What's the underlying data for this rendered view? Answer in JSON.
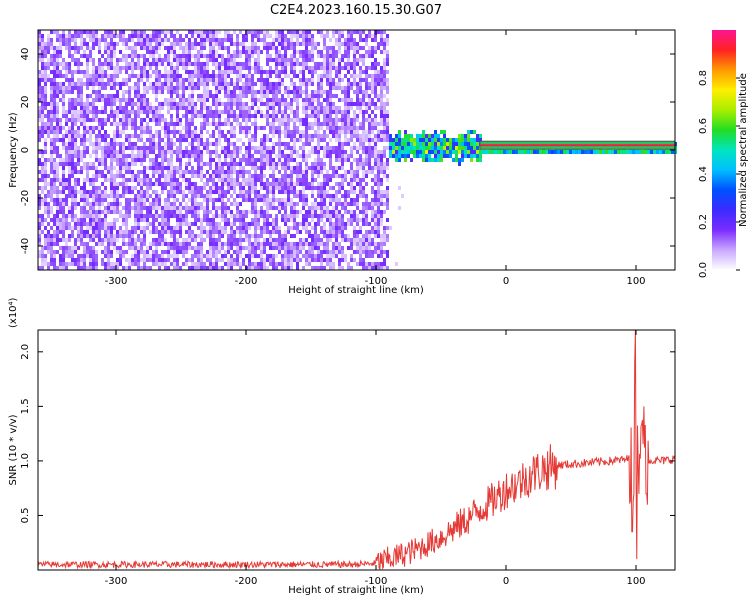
{
  "title": "C2E4.2023.160.15.30.G07",
  "colors": {
    "frame": "#000000",
    "snr_line": "#e53935",
    "trace_outer": "#555555",
    "trace_inner": "#ff1744",
    "band_core": "#22c55e"
  },
  "chart_data": [
    {
      "type": "heatmap",
      "title": "C2E4.2023.160.15.30.G07",
      "xlabel": "Height of straight line (km)",
      "ylabel": "Frequency (Hz)",
      "xlim": [
        -360,
        130
      ],
      "ylim": [
        -50,
        50
      ],
      "xticks": [
        -300,
        -200,
        -100,
        0,
        100
      ],
      "yticks": [
        -40,
        -20,
        0,
        20,
        40
      ],
      "colorbar": {
        "label": "Normalized spectral amplitude",
        "range": [
          0.0,
          1.0
        ],
        "ticks": [
          "0.0",
          "0.2",
          "0.4",
          "0.6",
          "0.8"
        ],
        "colormap": [
          "#ffffff",
          "#c9a8ff",
          "#7a2cff",
          "#3b2cff",
          "#0050ff",
          "#00bfff",
          "#00e5c0",
          "#22dd22",
          "#aaee00",
          "#ffee00",
          "#ff9900",
          "#ff2222",
          "#ff1493"
        ]
      },
      "features": {
        "noise_region_x": [
          -360,
          -90
        ],
        "noise_level": 0.1,
        "signal_frequency_hz": 2,
        "signal_start_x": -95,
        "saturated_band_x": [
          -20,
          130
        ]
      }
    },
    {
      "type": "line",
      "xlabel": "Height of straight line (km)",
      "ylabel": "SNR (10 * v/v)",
      "y_multiplier": "(x10⁴)",
      "xlim": [
        -360,
        130
      ],
      "ylim": [
        0,
        2.2
      ],
      "xticks": [
        -300,
        -200,
        -100,
        0,
        100
      ],
      "yticks": [
        0.5,
        1.0,
        1.5,
        2.0
      ],
      "series": [
        {
          "x": [
            -360,
            -320,
            -280,
            -240,
            -200,
            -160,
            -120,
            -100,
            -90,
            -80,
            -70,
            -60,
            -50,
            -40,
            -30,
            -20,
            -10,
            0,
            10,
            20,
            30,
            40,
            50,
            60,
            70,
            80,
            90,
            95,
            100,
            103,
            106,
            110,
            120,
            130
          ],
          "y": [
            0.05,
            0.05,
            0.05,
            0.05,
            0.05,
            0.05,
            0.05,
            0.06,
            0.1,
            0.14,
            0.18,
            0.24,
            0.3,
            0.38,
            0.46,
            0.56,
            0.64,
            0.74,
            0.8,
            0.88,
            0.93,
            0.96,
            0.97,
            0.98,
            0.99,
            1.0,
            1.01,
            1.02,
            1.03,
            1.1,
            1.02,
            1.01,
            1.0,
            1.02
          ]
        }
      ],
      "spikes": [
        {
          "x": 97,
          "y": 0.35
        },
        {
          "x": 99,
          "y": 1.9
        },
        {
          "x": 100,
          "y": 2.2
        },
        {
          "x": 101,
          "y": 0.1
        },
        {
          "x": 102,
          "y": 1.6
        },
        {
          "x": 104,
          "y": 0.15
        },
        {
          "x": 106,
          "y": 1.5
        },
        {
          "x": 108,
          "y": 0.7
        }
      ]
    }
  ]
}
